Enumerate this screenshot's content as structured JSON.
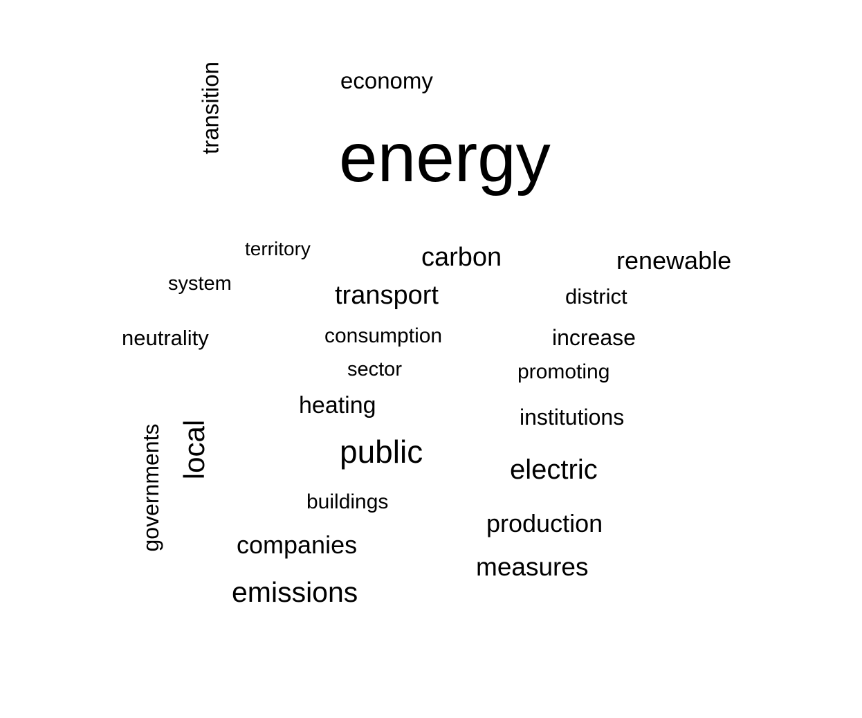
{
  "wordcloud": {
    "energy": "energy",
    "economy": "economy",
    "transition": "transition",
    "territory": "territory",
    "carbon": "carbon",
    "renewable": "renewable",
    "system": "system",
    "transport": "transport",
    "district": "district",
    "neutrality": "neutrality",
    "consumption": "consumption",
    "increase": "increase",
    "sector": "sector",
    "promoting": "promoting",
    "heating": "heating",
    "institutions": "institutions",
    "public": "public",
    "electric": "electric",
    "local": "local",
    "governments": "governments",
    "buildings": "buildings",
    "production": "production",
    "companies": "companies",
    "measures": "measures",
    "emissions": "emissions"
  },
  "colors": {
    "background": "#ffffff",
    "text": "#000000"
  }
}
